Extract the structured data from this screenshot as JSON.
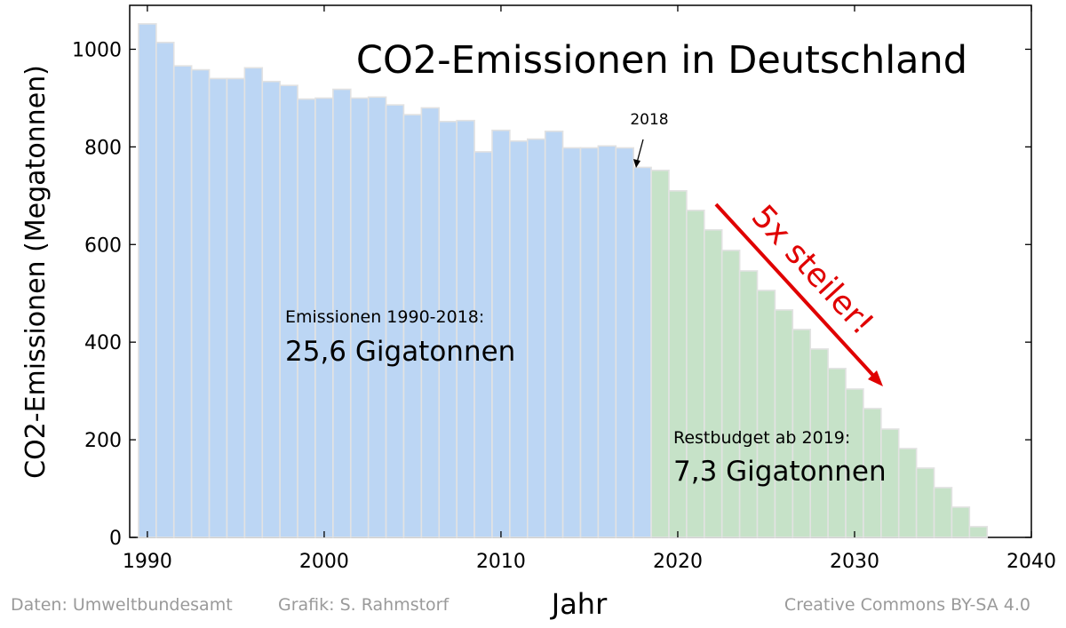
{
  "chart_data": {
    "type": "bar",
    "title": "CO2-Emissionen in Deutschland",
    "xlabel": "Jahr",
    "ylabel": "CO2-Emissionen (Megatonnen)",
    "xlim": [
      1989,
      2040
    ],
    "ylim": [
      0,
      1090
    ],
    "xticks": [
      1990,
      2000,
      2010,
      2020,
      2030,
      2040
    ],
    "yticks": [
      0,
      200,
      400,
      600,
      800,
      1000
    ],
    "series": [
      {
        "name": "Emissionen 1990-2018",
        "color": "#bcd6f4",
        "x": [
          1990,
          1991,
          1992,
          1993,
          1994,
          1995,
          1996,
          1997,
          1998,
          1999,
          2000,
          2001,
          2002,
          2003,
          2004,
          2005,
          2006,
          2007,
          2008,
          2009,
          2010,
          2011,
          2012,
          2013,
          2014,
          2015,
          2016,
          2017,
          2018
        ],
        "values": [
          1052,
          1014,
          966,
          958,
          940,
          940,
          962,
          934,
          926,
          898,
          900,
          918,
          900,
          902,
          886,
          866,
          880,
          852,
          854,
          790,
          834,
          812,
          816,
          832,
          798,
          798,
          802,
          798,
          758
        ]
      },
      {
        "name": "Restbudget ab 2019",
        "color": "#c6e2c8",
        "x": [
          2019,
          2020,
          2021,
          2022,
          2023,
          2024,
          2025,
          2026,
          2027,
          2028,
          2029,
          2030,
          2031,
          2032,
          2033,
          2034,
          2035,
          2036,
          2037
        ],
        "values": [
          752,
          710,
          670,
          630,
          588,
          546,
          506,
          466,
          426,
          386,
          346,
          304,
          264,
          222,
          182,
          142,
          102,
          62,
          22
        ]
      }
    ],
    "annotations": {
      "label_2018": "2018",
      "left_caption": "Emissionen 1990-2018:",
      "left_value": "25,6 Gigatonnen",
      "right_caption": "Restbudget ab 2019:",
      "right_value": "7,3 Gigatonnen",
      "arrow_text": "5x steiler!",
      "arrow_color": "#e00000"
    }
  },
  "footer": {
    "data_source": "Daten: Umweltbundesamt",
    "graphic_credit": "Grafik: S. Rahmstorf",
    "license": "Creative Commons BY-SA 4.0"
  }
}
